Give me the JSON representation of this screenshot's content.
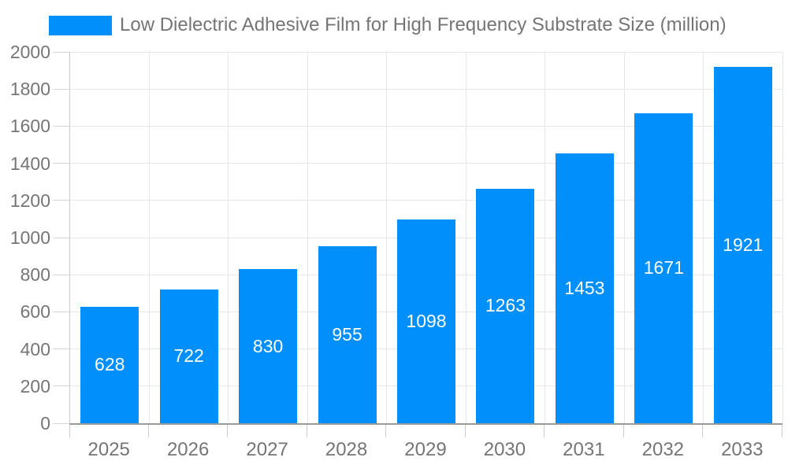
{
  "legend": {
    "label": "Low Dielectric Adhesive Film for High Frequency Substrate Size (million)",
    "marker_color": "#008FFB"
  },
  "chart_data": {
    "type": "bar",
    "title": "",
    "xlabel": "",
    "ylabel": "",
    "categories": [
      "2025",
      "2026",
      "2027",
      "2028",
      "2029",
      "2030",
      "2031",
      "2032",
      "2033"
    ],
    "series": [
      {
        "name": "Low Dielectric Adhesive Film for High Frequency Substrate Size (million)",
        "values": [
          628,
          722,
          830,
          955,
          1098,
          1263,
          1453,
          1671,
          1921
        ]
      }
    ],
    "value_labels_shown": true,
    "ylim": [
      0,
      2000
    ],
    "ytick_step": 200,
    "ytick_labels": [
      "0",
      "200",
      "400",
      "600",
      "800",
      "1000",
      "1200",
      "1400",
      "1600",
      "1800",
      "2000"
    ],
    "grid": true,
    "legend_position": "top-left"
  },
  "colors": {
    "bar": "#008FFB",
    "value_label": "#ffffff",
    "gridline": "#e7e7e7",
    "axis_line_left": "#c9c9c9",
    "axis_line_bottom": "#999999",
    "tick_label": "#757575",
    "background": "#ffffff"
  }
}
